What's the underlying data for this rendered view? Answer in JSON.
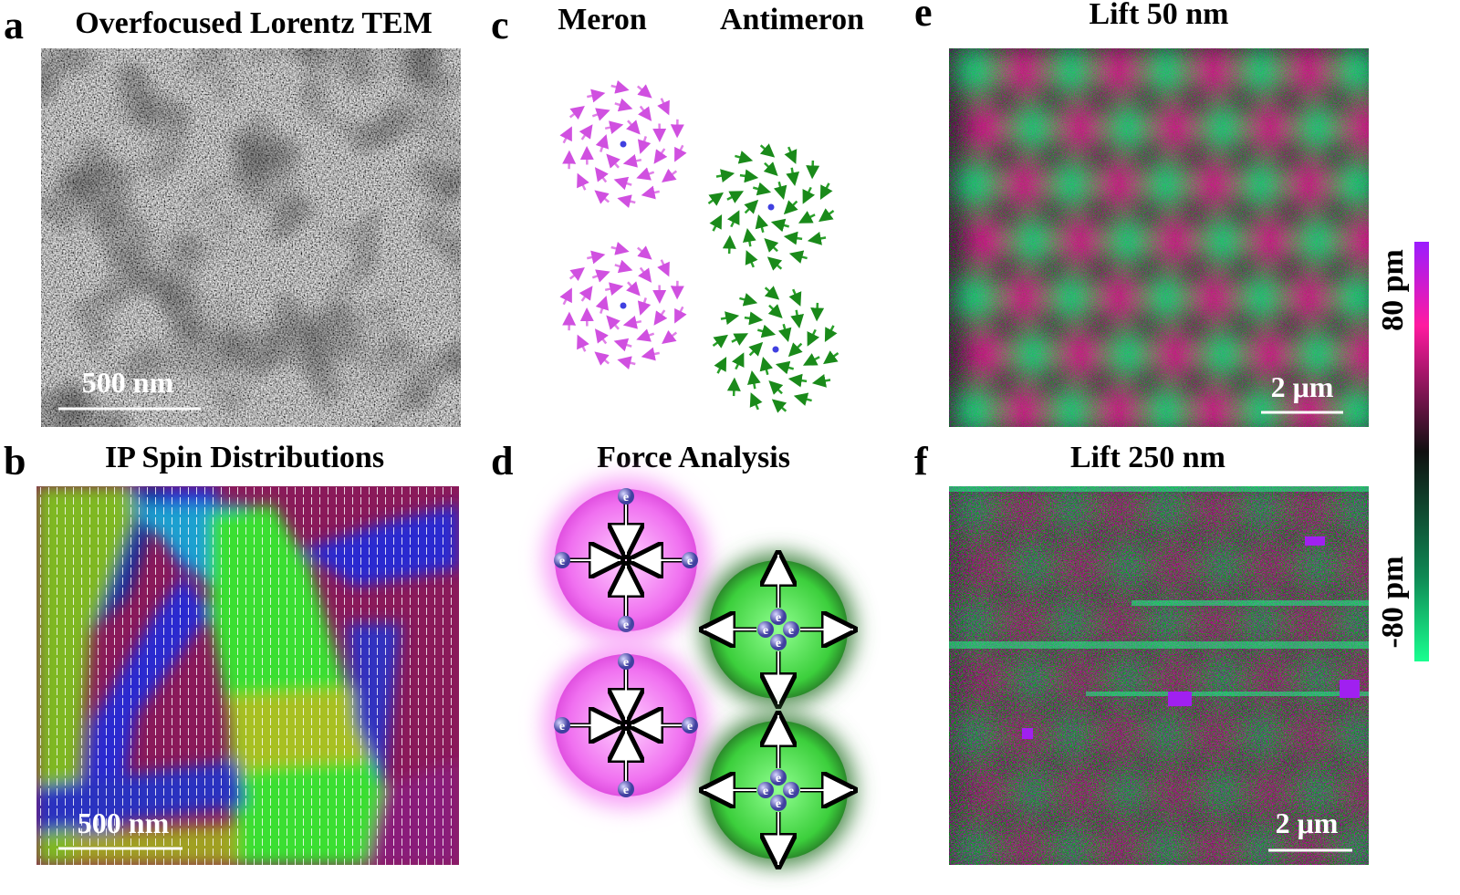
{
  "panels": [
    {
      "letter": "a",
      "title": "Overfocused Lorentz TEM",
      "scale_bar": "500 nm"
    },
    {
      "letter": "b",
      "title": "IP Spin Distributions",
      "scale_bar": "500 nm"
    },
    {
      "letter": "c",
      "labels": [
        "Meron",
        "Antimeron"
      ]
    },
    {
      "letter": "d",
      "title": "Force Analysis",
      "electron": "e"
    },
    {
      "letter": "e",
      "title": "Lift 50 nm",
      "scale_bar": "2 μm"
    },
    {
      "letter": "f",
      "title": "Lift 250 nm",
      "scale_bar": "2 μm"
    }
  ],
  "colorbar": {
    "max_label": "80 pm",
    "min_label": "-80 pm"
  }
}
